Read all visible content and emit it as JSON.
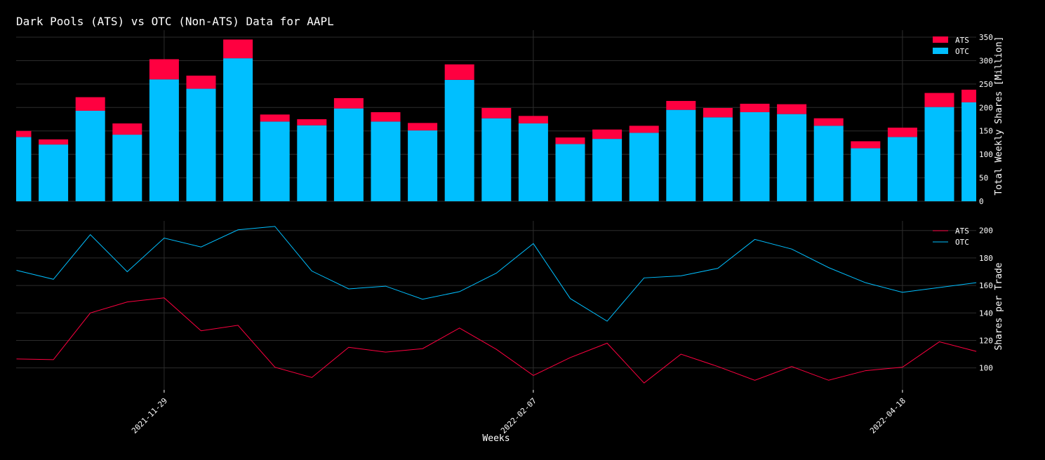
{
  "chart_data": [
    {
      "type": "bar",
      "title": "Dark Pools (ATS) vs OTC (Non-ATS) Data for AAPL",
      "ylabel": "Total Weekly Shares [Million]",
      "ylim": [
        0,
        365
      ],
      "yticks": [
        0,
        50,
        100,
        150,
        200,
        250,
        300,
        350
      ],
      "stacked": true,
      "legend_position": "top-right",
      "grid": true,
      "x_index": [
        0,
        1,
        2,
        3,
        4,
        5,
        6,
        7,
        8,
        9,
        10,
        11,
        12,
        13,
        14,
        15,
        16,
        17,
        18,
        19,
        20,
        21,
        22,
        23,
        24,
        25,
        26
      ],
      "series": [
        {
          "name": "OTC",
          "color": "#00bfff",
          "values": [
            137,
            121,
            193,
            142,
            260,
            240,
            305,
            170,
            162,
            198,
            170,
            151,
            259,
            177,
            166,
            122,
            133,
            146,
            195,
            179,
            190,
            186,
            161,
            113,
            137,
            201,
            211
          ]
        },
        {
          "name": "ATS",
          "color": "#ff0040",
          "values": [
            13,
            11,
            29,
            24,
            43,
            28,
            40,
            15,
            13,
            22,
            20,
            16,
            33,
            22,
            16,
            14,
            20,
            15,
            19,
            20,
            18,
            21,
            16,
            15,
            20,
            30,
            27
          ]
        }
      ]
    },
    {
      "type": "line",
      "ylabel": "Shares per Trade",
      "xlabel": "Weeks",
      "ylim": [
        84,
        207
      ],
      "yticks": [
        100,
        120,
        140,
        160,
        180,
        200
      ],
      "xticks": [
        {
          "label": "2021-11-29",
          "x": 4
        },
        {
          "label": "2022-02-07",
          "x": 14
        },
        {
          "label": "2022-04-18",
          "x": 24
        }
      ],
      "legend_position": "top-right",
      "grid": true,
      "x_index": [
        0,
        1,
        2,
        3,
        4,
        5,
        6,
        7,
        8,
        9,
        10,
        11,
        12,
        13,
        14,
        15,
        16,
        17,
        18,
        19,
        20,
        21,
        22,
        23,
        24,
        25,
        26
      ],
      "series": [
        {
          "name": "ATS",
          "color": "#ff0040",
          "values": [
            106.5,
            106,
            140,
            148,
            151,
            127,
            131,
            100.5,
            93,
            115,
            111.5,
            114,
            129,
            113.5,
            94.5,
            107.5,
            118,
            89,
            110,
            101,
            91,
            101,
            91,
            98,
            100.5,
            119,
            112
          ]
        },
        {
          "name": "OTC",
          "color": "#00bfff",
          "values": [
            171,
            164.5,
            197,
            170,
            194.5,
            188,
            200.5,
            203,
            170.5,
            157.5,
            159.5,
            150,
            155.5,
            169,
            190.5,
            150.5,
            134,
            165.5,
            167,
            172.5,
            193.5,
            186.5,
            173,
            162,
            155,
            158.5,
            162
          ]
        }
      ]
    }
  ]
}
